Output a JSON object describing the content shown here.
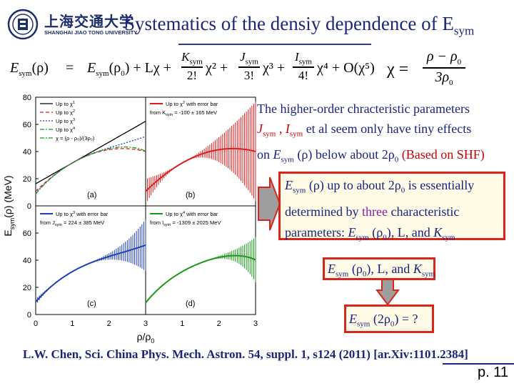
{
  "header": {
    "logo_cn": "上海交通大学",
    "logo_en": "SHANGHAI JIAO TONG UNIVERSITY",
    "title_main": "Systematics of the densiy dependence of E",
    "title_sub": "sym"
  },
  "formula": {
    "lhs": "E",
    "lhs_sub": "sym",
    "lhs_arg": "(ρ)",
    "eq": "=",
    "t0": "E",
    "t0_sub": "sym",
    "t0_arg": "(ρ",
    "t0_arg_sub": "0",
    "t0_close": ") + Lχ +",
    "k_num": "K",
    "k_num_sub": "sym",
    "k_den": "2!",
    "k_pow": "χ² +",
    "j_num": "J",
    "j_num_sub": "sym",
    "j_den": "3!",
    "j_pow": "χ³ +",
    "i_num": "I",
    "i_num_sub": "sym",
    "i_den": "4!",
    "i_pow": "χ⁴ + O(χ⁵)",
    "chi": "χ =",
    "chi_num": "ρ − ρ",
    "chi_num_sub": "0",
    "chi_den": "3ρ",
    "chi_den_sub": "0"
  },
  "figure": {
    "ylabel": "E",
    "ylabel_sub": "sym",
    "ylabel_rest": "(ρ) (MeV)",
    "xlabel": "ρ/ρ",
    "xlabel_sub": "0",
    "yticks_top": [
      "80",
      "60",
      "40",
      "20",
      "0"
    ],
    "yticks_bottom": [
      "60",
      "40",
      "20",
      "0"
    ],
    "xticks": [
      "0",
      "1",
      "2",
      "3"
    ],
    "xticks2": [
      "1",
      "2",
      "3"
    ],
    "panel_a": {
      "label": "(a)",
      "legend": [
        "Up to χ",
        "Up to χ",
        "Up to χ",
        "Up to χ",
        "χ = (ρ - ρ₀)/(3ρ₀)"
      ],
      "legend_pow": [
        "1",
        "2",
        "3",
        "4",
        ""
      ]
    },
    "panel_b": {
      "label": "(b)",
      "legend1": "Up to χ",
      "legend1_pow": "2",
      "legend1_rest": " with error bar",
      "legend2": "from K",
      "legend2_sub": "sym",
      "legend2_rest": " = -100 ± 165 MeV"
    },
    "panel_c": {
      "label": "(c)",
      "legend1": "Up to χ",
      "legend1_pow": "3",
      "legend1_rest": " with error bar",
      "legend2": "from J",
      "legend2_sub": "sym",
      "legend2_rest": " = 224 ± 385 MeV"
    },
    "panel_d": {
      "label": "(d)",
      "legend1": "Up to χ",
      "legend1_pow": "4",
      "legend1_rest": " with error bar",
      "legend2": "from I",
      "legend2_sub": "sym",
      "legend2_rest": " = -1309 ± 2025 MeV"
    },
    "colors": {
      "b": "#e11b1b",
      "c": "#1f3fb8",
      "d": "#1a9a1a"
    }
  },
  "text_higher": {
    "line1": "The higher-order chracteristic parameters",
    "j": "J",
    "j_sub": "sym",
    "sep": " , ",
    "i": "I",
    "i_sub": "sym",
    "line2_rest": " et al seem only have tiny effects",
    "line3_a": "on ",
    "e": "E",
    "e_sub": "sym",
    "line3_arg": " (ρ)",
    "line3_b": " below about 2ρ",
    "line3_b_sub": "0",
    "line3_red": " (Based on SHF)"
  },
  "box1": {
    "e": "E",
    "e_sub": "sym",
    "l1_rest": " (ρ)  up to about 2ρ",
    "l1_rest_sub": "0",
    "l1_end": "  is essentially",
    "l2_a": "determined by ",
    "l2_purple": "three",
    "l2_b": " characteristic",
    "l3_a": "parameters:  ",
    "l3_e": "E",
    "l3_e_sub": "sym",
    "l3_arg": " (ρ",
    "l3_arg_sub": "0",
    "l3_mid": "),  L,  and  ",
    "l3_k": "K",
    "l3_k_sub": "sym"
  },
  "box2": {
    "e": "E",
    "e_sub": "sym",
    "arg": " (ρ",
    "arg_sub": "0",
    "rest": "),  L,  and ",
    "k": "K",
    "k_sub": "sym"
  },
  "box3": {
    "e": "E",
    "e_sub": "sym",
    "arg": " (2ρ",
    "arg_sub": "0",
    "rest": ") = ?"
  },
  "citation": "L.W. Chen, Sci. China Phys. Mech. Astron. 54, suppl. 1, s124 (2011) [ar.Xiv:1101.2384]",
  "page_number": "p. 11"
}
